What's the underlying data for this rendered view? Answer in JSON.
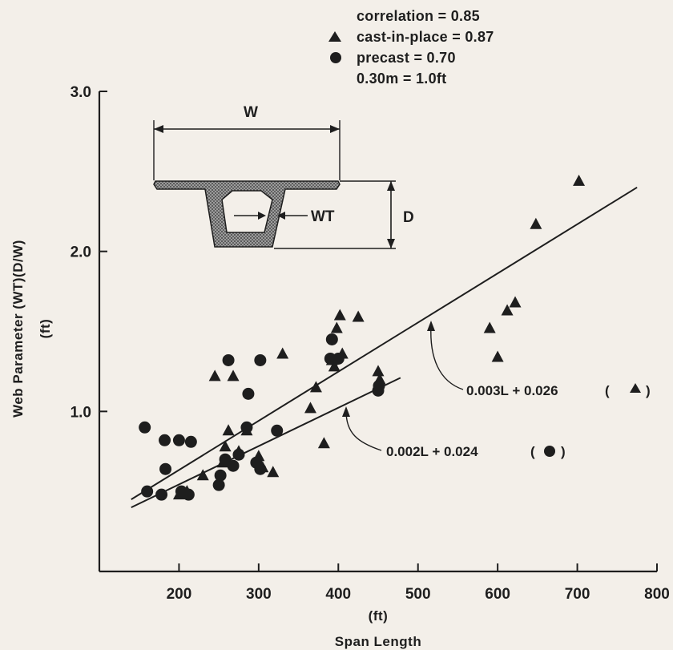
{
  "chart_data": {
    "type": "scatter",
    "title": "",
    "xlabel": "Span Length",
    "xunit": "(ft)",
    "ylabel": "Web Parameter (WT)(D/W)",
    "yunit": "(ft)",
    "xlim": [
      100,
      800
    ],
    "ylim": [
      0,
      3.0
    ],
    "x_ticks": [
      "200",
      "300",
      "400",
      "500",
      "600",
      "700",
      "800"
    ],
    "y_ticks": [
      "1.0",
      "2.0",
      "3.0"
    ],
    "legend": {
      "position": "top-right",
      "lines": [
        {
          "marker": "",
          "text": "correlation = 0.85"
        },
        {
          "marker": "triangle",
          "text": "cast-in-place = 0.87"
        },
        {
          "marker": "circle",
          "text": "precast = 0.70"
        },
        {
          "marker": "",
          "text": "0.30m = 1.0ft"
        }
      ]
    },
    "series": [
      {
        "marker": "triangle",
        "points": [
          [
            200,
            0.48
          ],
          [
            210,
            0.5
          ],
          [
            230,
            0.6
          ],
          [
            245,
            1.22
          ],
          [
            255,
            0.68
          ],
          [
            258,
            0.78
          ],
          [
            262,
            0.88
          ],
          [
            268,
            1.22
          ],
          [
            275,
            0.75
          ],
          [
            285,
            0.88
          ],
          [
            300,
            0.72
          ],
          [
            305,
            0.65
          ],
          [
            318,
            0.62
          ],
          [
            330,
            1.36
          ],
          [
            365,
            1.02
          ],
          [
            372,
            1.15
          ],
          [
            382,
            0.8
          ],
          [
            392,
            1.32
          ],
          [
            395,
            1.28
          ],
          [
            398,
            1.52
          ],
          [
            402,
            1.6
          ],
          [
            405,
            1.36
          ],
          [
            425,
            1.59
          ],
          [
            450,
            1.25
          ],
          [
            452,
            1.2
          ],
          [
            590,
            1.52
          ],
          [
            600,
            1.34
          ],
          [
            612,
            1.63
          ],
          [
            622,
            1.68
          ],
          [
            648,
            2.17
          ],
          [
            702,
            2.44
          ]
        ]
      },
      {
        "marker": "circle",
        "points": [
          [
            157,
            0.9
          ],
          [
            160,
            0.5
          ],
          [
            178,
            0.48
          ],
          [
            182,
            0.82
          ],
          [
            183,
            0.64
          ],
          [
            200,
            0.82
          ],
          [
            203,
            0.5
          ],
          [
            212,
            0.48
          ],
          [
            215,
            0.81
          ],
          [
            250,
            0.54
          ],
          [
            252,
            0.6
          ],
          [
            258,
            0.7
          ],
          [
            262,
            1.32
          ],
          [
            268,
            0.66
          ],
          [
            275,
            0.73
          ],
          [
            285,
            0.9
          ],
          [
            287,
            1.11
          ],
          [
            297,
            0.68
          ],
          [
            302,
            1.32
          ],
          [
            302,
            0.64
          ],
          [
            323,
            0.88
          ],
          [
            390,
            1.33
          ],
          [
            392,
            1.45
          ],
          [
            400,
            1.33
          ],
          [
            450,
            1.13
          ],
          [
            451,
            1.16
          ]
        ]
      }
    ],
    "fit_lines": [
      {
        "marker": "triangle",
        "label": "0.003L + 0.026",
        "from": [
          140,
          0.45
        ],
        "to": [
          775,
          2.4
        ],
        "label_marker": "triangle"
      },
      {
        "marker": "circle",
        "label": "0.002L + 0.024",
        "from": [
          140,
          0.4
        ],
        "to": [
          478,
          1.21
        ],
        "label_marker": "circle"
      }
    ],
    "inset": {
      "width_label": "W",
      "web_label": "WT",
      "depth_label": "D"
    }
  }
}
